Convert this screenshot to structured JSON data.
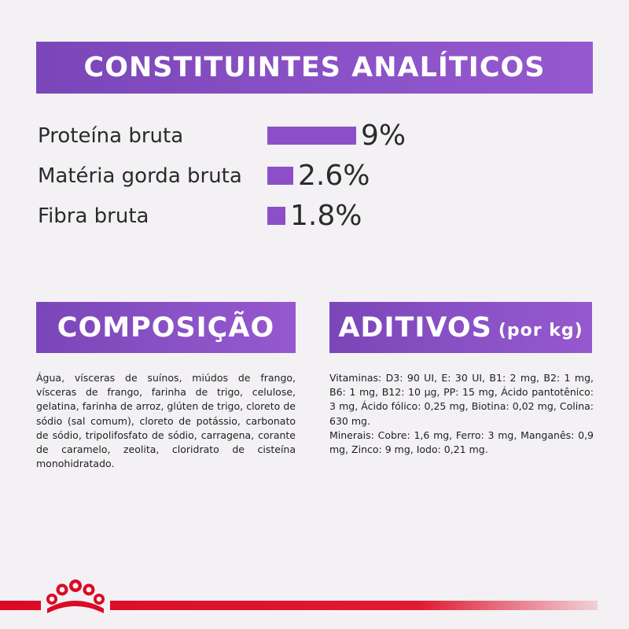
{
  "header": {
    "title": "CONSTITUINTES ANALÍTICOS"
  },
  "analytics": [
    {
      "label": "Proteína bruta",
      "value": "9%",
      "percent": 9
    },
    {
      "label": "Matéria gorda bruta",
      "value": "2.6%",
      "percent": 2.6
    },
    {
      "label": "Fibra bruta",
      "value": "1.8%",
      "percent": 1.8
    }
  ],
  "composition": {
    "title": "COMPOSIÇÃO",
    "text": "Água, vísceras de suínos, miúdos de frango, vísceras de frango, farinha de trigo, celulose, gelatina, farinha de arroz, glúten de trigo, cloreto de sódio (sal comum), cloreto de potássio, carbonato de sódio, tripolifosfato de sódio, carragena, corante de caramelo, zeolita, cloridrato de cisteína monohidratado."
  },
  "additives": {
    "title": "ADITIVOS",
    "unit": "(por kg)",
    "vitamins": "Vitaminas: D3: 90 UI, E: 30 UI, B1: 2 mg, B2: 1 mg, B6: 1 mg, B12: 10 µg, PP: 15 mg, Ácido pantotênico: 3 mg, Ácido fólico: 0,25 mg, Biotina: 0,02 mg, Colina: 630 mg.",
    "minerals": "Minerais: Cobre: 1,6 mg, Ferro: 3 mg, Manganês: 0,9 mg, Zinco: 9 mg, Iodo: 0,21 mg."
  },
  "colors": {
    "accent": "#8c4fc7",
    "brand_red": "#dc0a24"
  }
}
